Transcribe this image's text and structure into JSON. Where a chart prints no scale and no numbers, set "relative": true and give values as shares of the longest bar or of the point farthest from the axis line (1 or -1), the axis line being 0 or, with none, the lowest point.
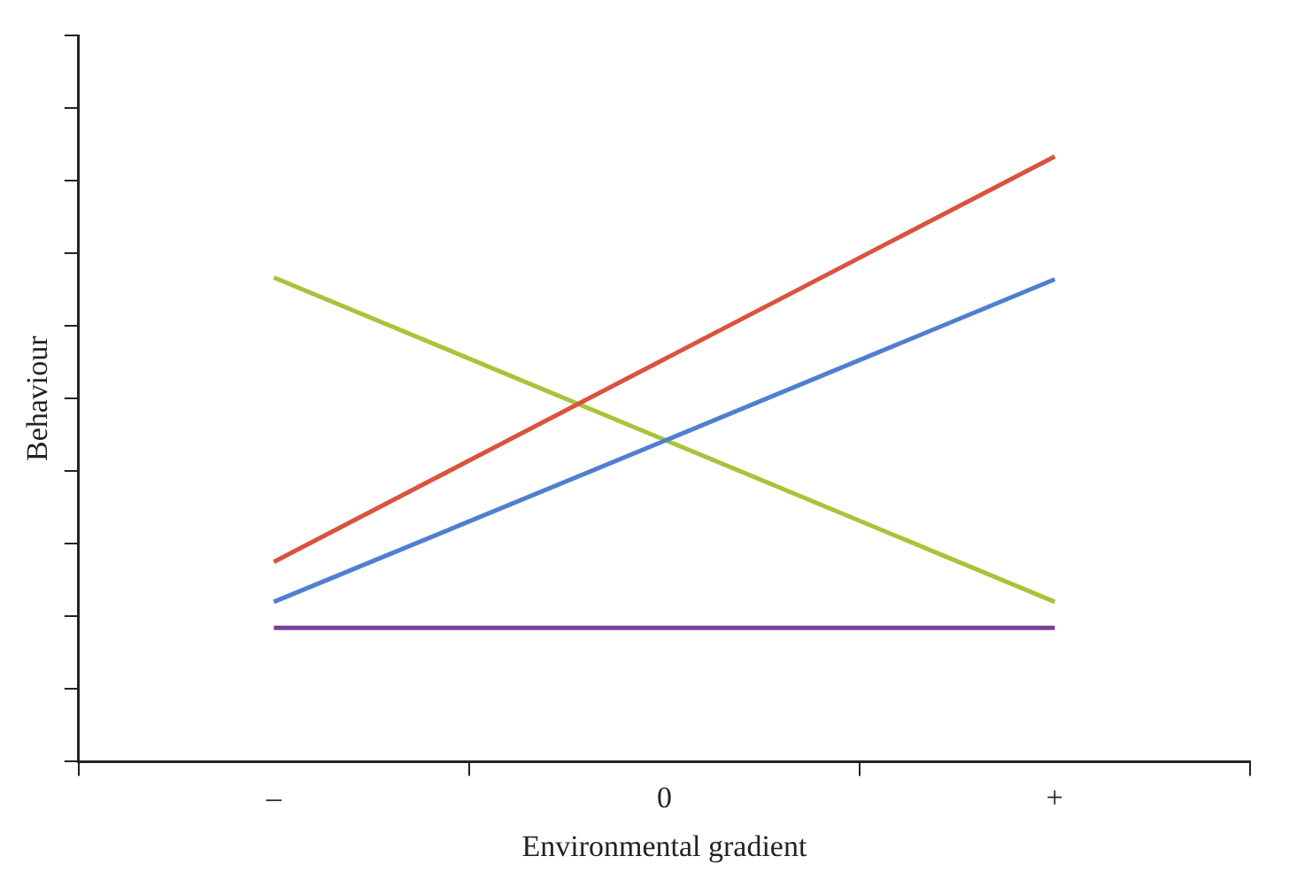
{
  "chart_data": {
    "type": "line",
    "xlabel": "Environmental gradient",
    "ylabel": "Behaviour",
    "categories": [
      "–",
      "0",
      "+"
    ],
    "relative": true,
    "tick_labels": "x",
    "grid": false,
    "legend": false,
    "marker": "none",
    "line_style": "solid",
    "series": [
      {
        "color": "#d9533f",
        "values": [
          0.33,
          0.665,
          1
        ]
      },
      {
        "color": "#4f7fd1",
        "values": [
          0.264,
          0.53,
          0.797
        ]
      },
      {
        "color": "#a7c43a",
        "values": [
          0.8,
          0.532,
          0.264
        ]
      },
      {
        "color": "#7b3f98",
        "values": [
          0.221,
          0.221,
          0.221
        ]
      }
    ]
  }
}
